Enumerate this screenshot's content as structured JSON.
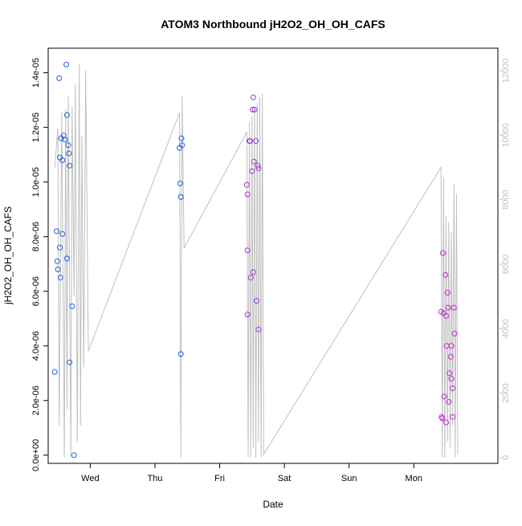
{
  "chart_data": {
    "type": "scatter",
    "title": "ATOM3 Northbound jH2O2_OH_OH_CAFS",
    "xlabel": "Date",
    "ylabel": "jH2O2_OH_OH_CAFS",
    "x_tick_labels": [
      "Wed",
      "Thu",
      "Fri",
      "Sat",
      "Sun",
      "Mon"
    ],
    "x_tick_days": [
      1,
      2,
      3,
      4,
      5,
      6
    ],
    "xlim_days": [
      0.35,
      7.3
    ],
    "y_left": {
      "ticks": [
        0,
        2e-06,
        4e-06,
        6e-06,
        8e-06,
        1e-05,
        1.2e-05,
        1.4e-05
      ],
      "tick_labels": [
        "0.0e+00",
        "2.0e-06",
        "4.0e-06",
        "6.0e-06",
        "8.0e-06",
        "1.0e-05",
        "1.2e-05",
        "1.4e-05"
      ],
      "ylim": [
        -3e-07,
        1.49e-05
      ]
    },
    "y_right": {
      "ticks": [
        0,
        2000,
        4000,
        6000,
        8000,
        10000,
        12000
      ],
      "tick_labels": [
        "0",
        "2000",
        "4000",
        "6000",
        "8000",
        "10000",
        "12000"
      ],
      "ylim": [
        -180,
        12700
      ],
      "color": "#c0c0c0"
    },
    "colors": {
      "point_early": "#1f5fe0",
      "point_late": "#cc22dd",
      "line": "#c0c0c0",
      "axis": "#000000"
    },
    "altitude_trace": [
      [
        0.45,
        9000
      ],
      [
        0.5,
        10200
      ],
      [
        0.52,
        1000
      ],
      [
        0.56,
        10700
      ],
      [
        0.6,
        0
      ],
      [
        0.62,
        10800
      ],
      [
        0.64,
        1500
      ],
      [
        0.66,
        11200
      ],
      [
        0.7,
        0
      ],
      [
        0.72,
        10900
      ],
      [
        0.75,
        5000
      ],
      [
        0.77,
        11600
      ],
      [
        0.8,
        500
      ],
      [
        0.83,
        12200
      ],
      [
        0.85,
        1000
      ],
      [
        0.87,
        10000
      ],
      [
        0.9,
        2800
      ],
      [
        0.93,
        12000
      ],
      [
        0.97,
        3300
      ],
      [
        2.38,
        10700
      ],
      [
        2.4,
        0
      ],
      [
        2.42,
        11200
      ],
      [
        2.45,
        6500
      ],
      [
        3.42,
        10100
      ],
      [
        3.44,
        0
      ],
      [
        3.46,
        10400
      ],
      [
        3.48,
        0
      ],
      [
        3.5,
        10600
      ],
      [
        3.52,
        300
      ],
      [
        3.54,
        10800
      ],
      [
        3.56,
        0
      ],
      [
        3.58,
        11000
      ],
      [
        3.6,
        500
      ],
      [
        3.62,
        11200
      ],
      [
        3.64,
        0
      ],
      [
        3.66,
        11300
      ],
      [
        3.68,
        100
      ],
      [
        6.42,
        9000
      ],
      [
        6.44,
        0
      ],
      [
        6.46,
        8700
      ],
      [
        6.48,
        0
      ],
      [
        6.5,
        7500
      ],
      [
        6.52,
        500
      ],
      [
        6.54,
        7300
      ],
      [
        6.56,
        300
      ],
      [
        6.58,
        7000
      ],
      [
        6.6,
        1000
      ],
      [
        6.62,
        8500
      ],
      [
        6.64,
        0
      ],
      [
        6.66,
        8200
      ],
      [
        6.68,
        100
      ]
    ],
    "series": [
      {
        "color": "#1f5fe0",
        "points": [
          [
            0.45,
            3.05e-06
          ],
          [
            0.48,
            8.2e-06
          ],
          [
            0.49,
            7.1e-06
          ],
          [
            0.5,
            6.8e-06
          ],
          [
            0.52,
            1.38e-05
          ],
          [
            0.53,
            7.6e-06
          ],
          [
            0.53,
            1.09e-05
          ],
          [
            0.54,
            6.5e-06
          ],
          [
            0.55,
            1.16e-05
          ],
          [
            0.57,
            1.08e-05
          ],
          [
            0.57,
            8.1e-06
          ],
          [
            0.59,
            1.17e-05
          ],
          [
            0.61,
            1.155e-05
          ],
          [
            0.63,
            1.43e-05
          ],
          [
            0.64,
            1.245e-05
          ],
          [
            0.64,
            7.2e-06
          ],
          [
            0.66,
            1.135e-05
          ],
          [
            0.67,
            1.105e-05
          ],
          [
            0.68,
            1.06e-05
          ],
          [
            0.68,
            3.4e-06
          ],
          [
            0.72,
            5.45e-06
          ],
          [
            0.75,
            0.0
          ],
          [
            2.38,
            1.125e-05
          ],
          [
            2.39,
            9.95e-06
          ],
          [
            2.4,
            9.45e-06
          ],
          [
            2.4,
            3.7e-06
          ],
          [
            2.41,
            1.16e-05
          ],
          [
            2.42,
            1.135e-05
          ]
        ]
      },
      {
        "color": "#9a3ad8",
        "points": [
          [
            3.42,
            9.9e-06
          ],
          [
            3.43,
            9.55e-06
          ],
          [
            3.43,
            7.5e-06
          ],
          [
            3.43,
            5.15e-06
          ],
          [
            3.46,
            1.15e-05
          ],
          [
            3.47,
            1.15e-05
          ],
          [
            3.48,
            6.5e-06
          ],
          [
            3.5,
            1.04e-05
          ],
          [
            3.51,
            1.265e-05
          ],
          [
            3.52,
            1.31e-05
          ],
          [
            3.52,
            6.7e-06
          ],
          [
            3.53,
            1.075e-05
          ],
          [
            3.54,
            1.265e-05
          ],
          [
            3.56,
            1.15e-05
          ],
          [
            3.57,
            5.65e-06
          ],
          [
            3.59,
            1.06e-05
          ],
          [
            3.6,
            1.05e-05
          ],
          [
            3.6,
            4.6e-06
          ]
        ]
      },
      {
        "color": "#cc22dd",
        "points": [
          [
            6.42,
            5.25e-06
          ],
          [
            6.43,
            1.4e-06
          ],
          [
            6.44,
            1.35e-06
          ],
          [
            6.45,
            7.4e-06
          ],
          [
            6.46,
            5.2e-06
          ],
          [
            6.47,
            2.15e-06
          ],
          [
            6.49,
            6.6e-06
          ],
          [
            6.5,
            5.1e-06
          ],
          [
            6.5,
            1.2e-06
          ],
          [
            6.51,
            4e-06
          ],
          [
            6.52,
            5.95e-06
          ],
          [
            6.53,
            5.4e-06
          ],
          [
            6.54,
            1.95e-06
          ],
          [
            6.55,
            3e-06
          ],
          [
            6.57,
            3.6e-06
          ],
          [
            6.58,
            4e-06
          ],
          [
            6.58,
            2.8e-06
          ],
          [
            6.6,
            2.45e-06
          ],
          [
            6.6,
            1.4e-06
          ],
          [
            6.62,
            5.4e-06
          ],
          [
            6.63,
            4.45e-06
          ]
        ]
      }
    ]
  }
}
